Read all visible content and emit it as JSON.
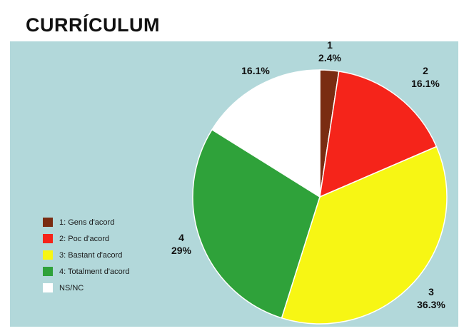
{
  "title": "CURRÍCULUM",
  "chart_data": {
    "type": "pie",
    "categories": [
      "1",
      "2",
      "3",
      "4",
      "NS/NC"
    ],
    "values": [
      2.4,
      16.1,
      36.3,
      29,
      16.1
    ],
    "value_labels": [
      "2.4%",
      "16.1%",
      "36.3%",
      "29%",
      "16.1%"
    ],
    "slice_labels": [
      "1",
      "2",
      "3",
      "4",
      ""
    ],
    "legend": [
      "1: Gens d'acord",
      "2: Poc d'acord",
      "3: Bastant d'acord",
      "4: Totalment d'acord",
      "NS/NC"
    ],
    "colors": [
      "#7a2c12",
      "#f5241a",
      "#f7f614",
      "#2fa23a",
      "#ffffff"
    ],
    "legend_position": "left"
  }
}
